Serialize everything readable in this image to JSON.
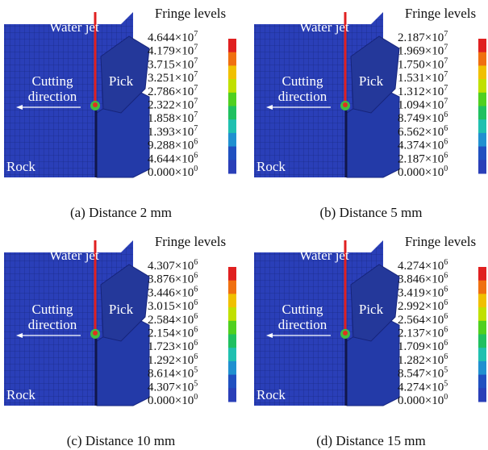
{
  "panels": [
    {
      "fringe_title": "Fringe levels",
      "labels": {
        "water_jet": "Water jet",
        "cutting": "Cutting",
        "direction": "direction",
        "pick": "Pick",
        "rock": "Rock"
      },
      "levels": [
        {
          "base": "4.644×10",
          "exp": "7"
        },
        {
          "base": "4.179×10",
          "exp": "7"
        },
        {
          "base": "3.715×10",
          "exp": "7"
        },
        {
          "base": "3.251×10",
          "exp": "7"
        },
        {
          "base": "2.786×10",
          "exp": "7"
        },
        {
          "base": "2.322×10",
          "exp": "7"
        },
        {
          "base": "1.858×10",
          "exp": "7"
        },
        {
          "base": "1.393×10",
          "exp": "7"
        },
        {
          "base": "9.288×10",
          "exp": "6"
        },
        {
          "base": "4.644×10",
          "exp": "6"
        },
        {
          "base": "0.000×10",
          "exp": "0"
        }
      ],
      "caption": "(a) Distance 2 mm"
    },
    {
      "fringe_title": "Fringe levels",
      "labels": {
        "water_jet": "Water jet",
        "cutting": "Cutting",
        "direction": "direction",
        "pick": "Pick",
        "rock": "Rock"
      },
      "levels": [
        {
          "base": "2.187×10",
          "exp": "7"
        },
        {
          "base": "1.969×10",
          "exp": "7"
        },
        {
          "base": "1.750×10",
          "exp": "7"
        },
        {
          "base": "1.531×10",
          "exp": "7"
        },
        {
          "base": "1.312×10",
          "exp": "7"
        },
        {
          "base": "1.094×10",
          "exp": "7"
        },
        {
          "base": "8.749×10",
          "exp": "6"
        },
        {
          "base": "6.562×10",
          "exp": "6"
        },
        {
          "base": "4.374×10",
          "exp": "6"
        },
        {
          "base": "2.187×10",
          "exp": "6"
        },
        {
          "base": "0.000×10",
          "exp": "0"
        }
      ],
      "caption": "(b) Distance 5 mm"
    },
    {
      "fringe_title": "Fringe levels",
      "labels": {
        "water_jet": "Water jet",
        "cutting": "Cutting",
        "direction": "direction",
        "pick": "Pick",
        "rock": "Rock"
      },
      "levels": [
        {
          "base": "4.307×10",
          "exp": "6"
        },
        {
          "base": "3.876×10",
          "exp": "6"
        },
        {
          "base": "3.446×10",
          "exp": "6"
        },
        {
          "base": "3.015×10",
          "exp": "6"
        },
        {
          "base": "2.584×10",
          "exp": "6"
        },
        {
          "base": "2.154×10",
          "exp": "6"
        },
        {
          "base": "1.723×10",
          "exp": "6"
        },
        {
          "base": "1.292×10",
          "exp": "6"
        },
        {
          "base": "8.614×10",
          "exp": "5"
        },
        {
          "base": "4.307×10",
          "exp": "5"
        },
        {
          "base": "0.000×10",
          "exp": "0"
        }
      ],
      "caption": "(c) Distance 10 mm"
    },
    {
      "fringe_title": "Fringe levels",
      "labels": {
        "water_jet": "Water jet",
        "cutting": "Cutting",
        "direction": "direction",
        "pick": "Pick",
        "rock": "Rock"
      },
      "levels": [
        {
          "base": "4.274×10",
          "exp": "6"
        },
        {
          "base": "3.846×10",
          "exp": "6"
        },
        {
          "base": "3.419×10",
          "exp": "6"
        },
        {
          "base": "2.992×10",
          "exp": "6"
        },
        {
          "base": "2.564×10",
          "exp": "6"
        },
        {
          "base": "2.137×10",
          "exp": "6"
        },
        {
          "base": "1.709×10",
          "exp": "6"
        },
        {
          "base": "1.282×10",
          "exp": "6"
        },
        {
          "base": "8.547×10",
          "exp": "5"
        },
        {
          "base": "4.274×10",
          "exp": "5"
        },
        {
          "base": "0.000×10",
          "exp": "0"
        }
      ],
      "caption": "(d) Distance 15 mm"
    }
  ]
}
